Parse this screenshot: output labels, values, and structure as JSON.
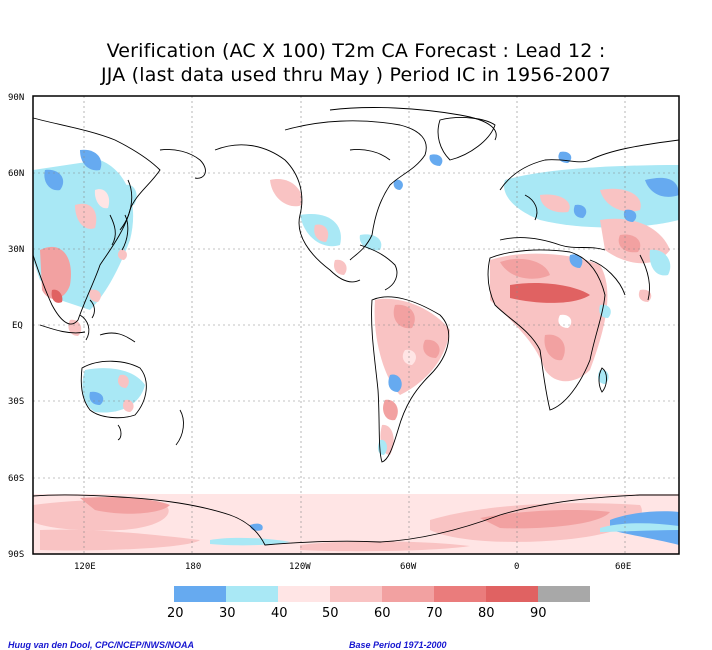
{
  "title": {
    "line1": "Verification (AC X 100) T2m CA Forecast : Lead 12 :",
    "line2": "JJA (last data used thru May ) Period IC in 1956-2007"
  },
  "map": {
    "lat_labels": [
      "90N",
      "60N",
      "30N",
      "EQ",
      "30S",
      "60S",
      "90S"
    ],
    "lon_labels": [
      "120E",
      "180",
      "120W",
      "60W",
      "0",
      "60E"
    ],
    "grid": true
  },
  "colorbar": {
    "levels": [
      "20",
      "30",
      "40",
      "50",
      "60",
      "70",
      "80",
      "90"
    ],
    "colors": [
      "#66aaf0",
      "#a9e8f5",
      "#ffe5e5",
      "#f9c3c3",
      "#f2a1a1",
      "#ea7c7c",
      "#e06262",
      "#a8a8a8"
    ]
  },
  "credits": {
    "left": "Huug van den Dool, CPC/NCEP/NWS/NOAA",
    "right": "Base Period 1971-2000"
  }
}
